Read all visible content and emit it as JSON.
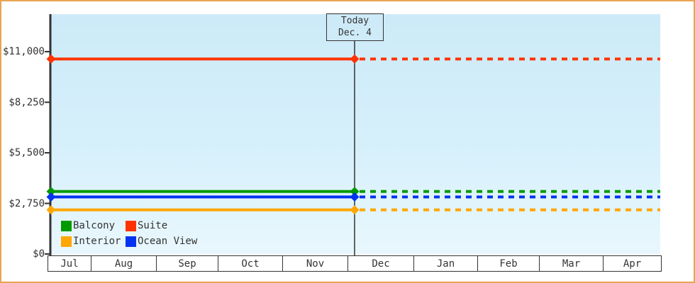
{
  "window": {
    "kind": "price-history-chart"
  },
  "colors": {
    "frame_border": "#e9a452",
    "axis": "#333333",
    "text": "#333333",
    "plot_bg_top": "#cdeaf8",
    "plot_bg_bottom": "#e9f7fd"
  },
  "chart_data": {
    "type": "line",
    "title": "",
    "xlabel": "",
    "ylabel": "",
    "ylim": [
      0,
      11000
    ],
    "grid": false,
    "legend_position": "bottom-left-inside",
    "y_ticks": [
      {
        "value": 11000,
        "label": "$11,000"
      },
      {
        "value": 8250,
        "label": "$8,250"
      },
      {
        "value": 5500,
        "label": "$5,500"
      },
      {
        "value": 2750,
        "label": "$2,750"
      },
      {
        "value": 0,
        "label": "$0"
      }
    ],
    "x_categories": [
      "Jul",
      "Aug",
      "Sep",
      "Oct",
      "Nov",
      "Dec",
      "Jan",
      "Feb",
      "Mar",
      "Apr"
    ],
    "today": {
      "line1": "Today",
      "line2": "Dec. 4"
    },
    "series": [
      {
        "name": "Suite",
        "color": "#ff3300",
        "value": 10600
      },
      {
        "name": "Balcony",
        "color": "#009a00",
        "value": 3400
      },
      {
        "name": "Ocean View",
        "color": "#0433f0",
        "value": 3100
      },
      {
        "name": "Interior",
        "color": "#ffa600",
        "value": 2400
      }
    ],
    "line_style": {
      "before_today": "solid",
      "after_today": "dashed"
    },
    "legend_rows": [
      [
        "Balcony",
        "Suite"
      ],
      [
        "Interior",
        "Ocean View"
      ]
    ]
  }
}
